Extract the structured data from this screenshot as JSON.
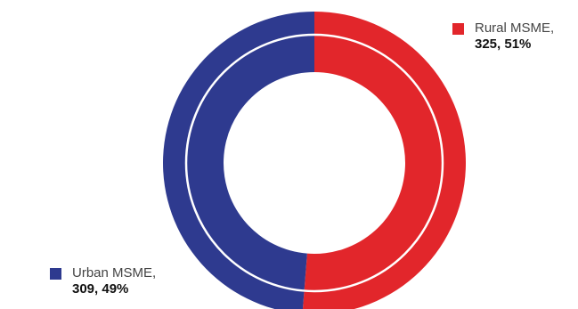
{
  "chart_data": {
    "type": "pie",
    "variant": "donut",
    "series": [
      {
        "name": "Rural MSME,",
        "value": 325,
        "percent": 51,
        "color": "#E2262B",
        "label_value": "325, 51%"
      },
      {
        "name": "Urban MSME,",
        "value": 309,
        "percent": 49,
        "color": "#2E3A8F",
        "label_value": "309, 49%"
      }
    ],
    "start": "12 o'clock",
    "direction": "clockwise",
    "legend": "labels beside slices"
  }
}
